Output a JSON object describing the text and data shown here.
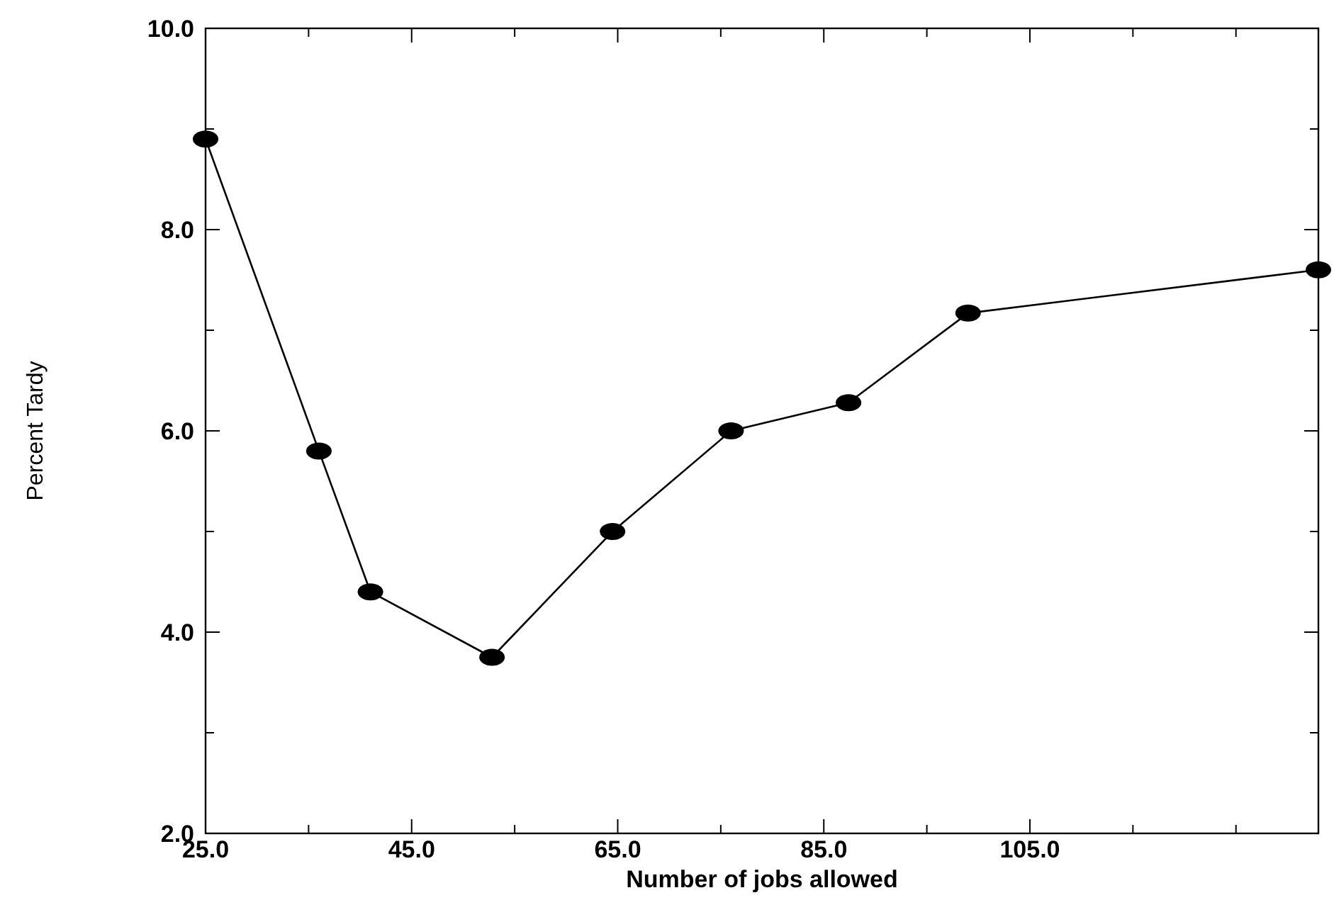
{
  "chart_data": {
    "type": "line",
    "xlabel": "Number of jobs allowed",
    "ylabel": "Percent Tardy",
    "x": [
      25,
      36,
      41,
      52.8,
      64.5,
      76,
      87.4,
      99,
      133
    ],
    "series": [
      {
        "color": "#000000",
        "values": [
          8.9,
          5.8,
          4.4,
          3.75,
          5.0,
          6.0,
          6.28,
          7.17,
          7.6
        ]
      }
    ],
    "xlim": [
      25,
      133
    ],
    "xticks": [
      {
        "value": 25,
        "label": "25.0"
      },
      {
        "value": 35,
        "label": null
      },
      {
        "value": 45,
        "label": "45.0"
      },
      {
        "value": 55,
        "label": null
      },
      {
        "value": 65,
        "label": "65.0"
      },
      {
        "value": 75,
        "label": null
      },
      {
        "value": 85,
        "label": "85.0"
      },
      {
        "value": 95,
        "label": null
      },
      {
        "value": 105,
        "label": "105.0"
      },
      {
        "value": 115,
        "label": null
      },
      {
        "value": 125,
        "label": null
      }
    ],
    "ylim": [
      2,
      10
    ],
    "yticks": [
      {
        "value": 2,
        "label": "2.0"
      },
      {
        "value": 3,
        "label": null
      },
      {
        "value": 4,
        "label": "4.0"
      },
      {
        "value": 5,
        "label": null
      },
      {
        "value": 6,
        "label": "6.0"
      },
      {
        "value": 7,
        "label": null
      },
      {
        "value": 8,
        "label": "8.0"
      },
      {
        "value": 9,
        "label": null
      },
      {
        "value": 10,
        "label": "10.0"
      }
    ],
    "grid": false,
    "marker": "circle",
    "line_style": "solid"
  }
}
